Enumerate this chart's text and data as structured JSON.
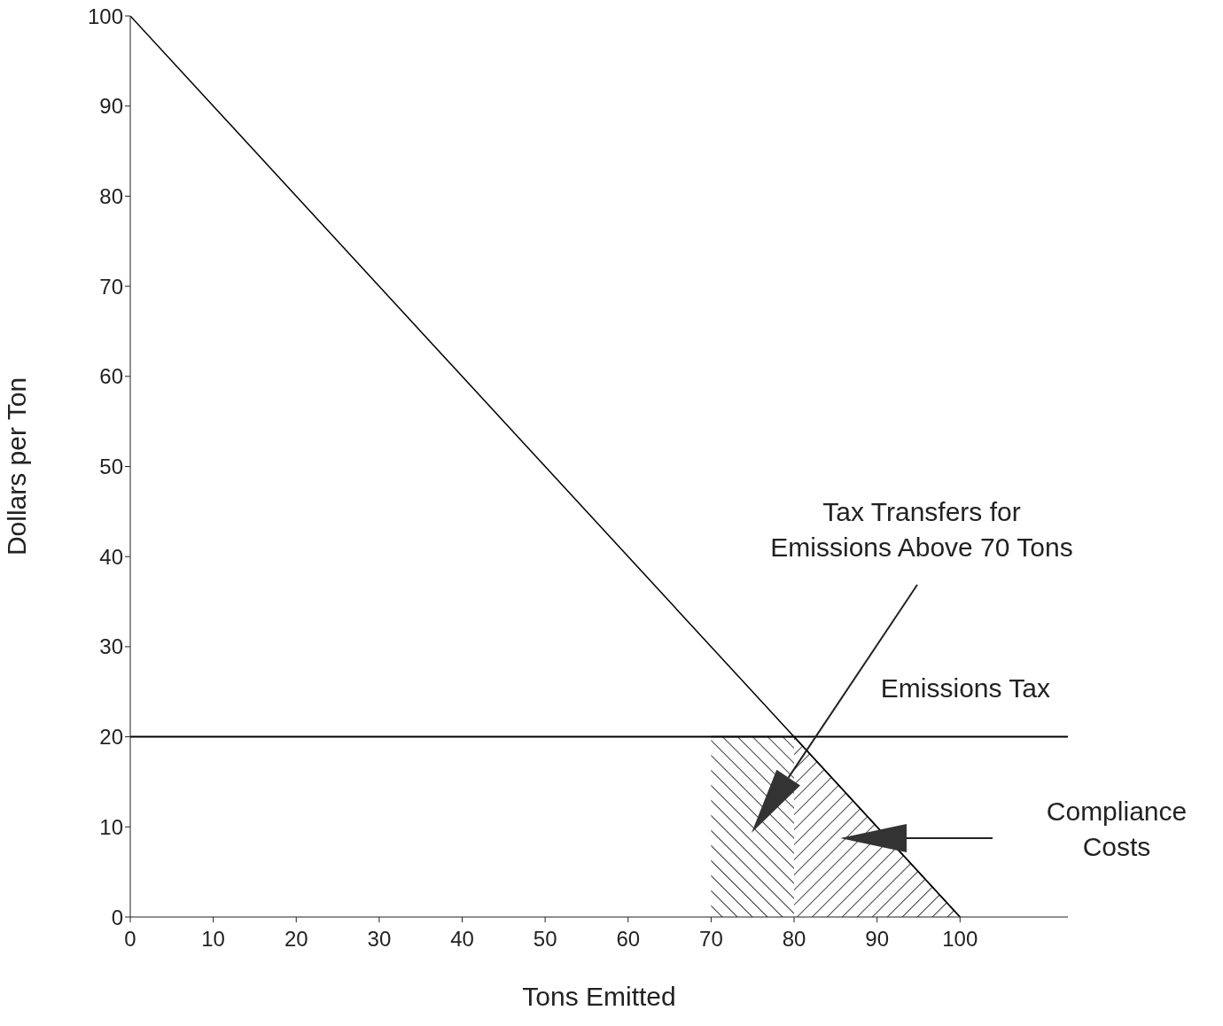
{
  "chart_data": {
    "type": "line",
    "xlabel": "Tons Emitted",
    "ylabel": "Dollars per Ton",
    "xlim": [
      0,
      113
    ],
    "xticks": [
      0,
      10,
      20,
      30,
      40,
      50,
      60,
      70,
      80,
      90,
      100
    ],
    "ylim": [
      0,
      100
    ],
    "yticks": [
      0,
      10,
      20,
      30,
      40,
      50,
      60,
      70,
      80,
      90,
      100
    ],
    "series": [
      {
        "x": [
          0,
          100
        ],
        "values": [
          100,
          0
        ],
        "color": "#000000"
      },
      {
        "type": "area",
        "x": [
          70,
          80
        ],
        "values": [
          20,
          20
        ],
        "color": "#000000"
      },
      {
        "type": "area",
        "x": [
          80,
          100
        ],
        "values": [
          20,
          0
        ],
        "color": "#000000"
      }
    ],
    "ref_lines": [
      {
        "axis": "y",
        "value": 20,
        "label": "Emissions Tax",
        "color": "#000000"
      }
    ],
    "annotations": [
      "Tax Transfers for Emissions Above 70 Tons",
      "Compliance Costs"
    ],
    "grid": false,
    "marker": "none",
    "line_style": "solid"
  }
}
